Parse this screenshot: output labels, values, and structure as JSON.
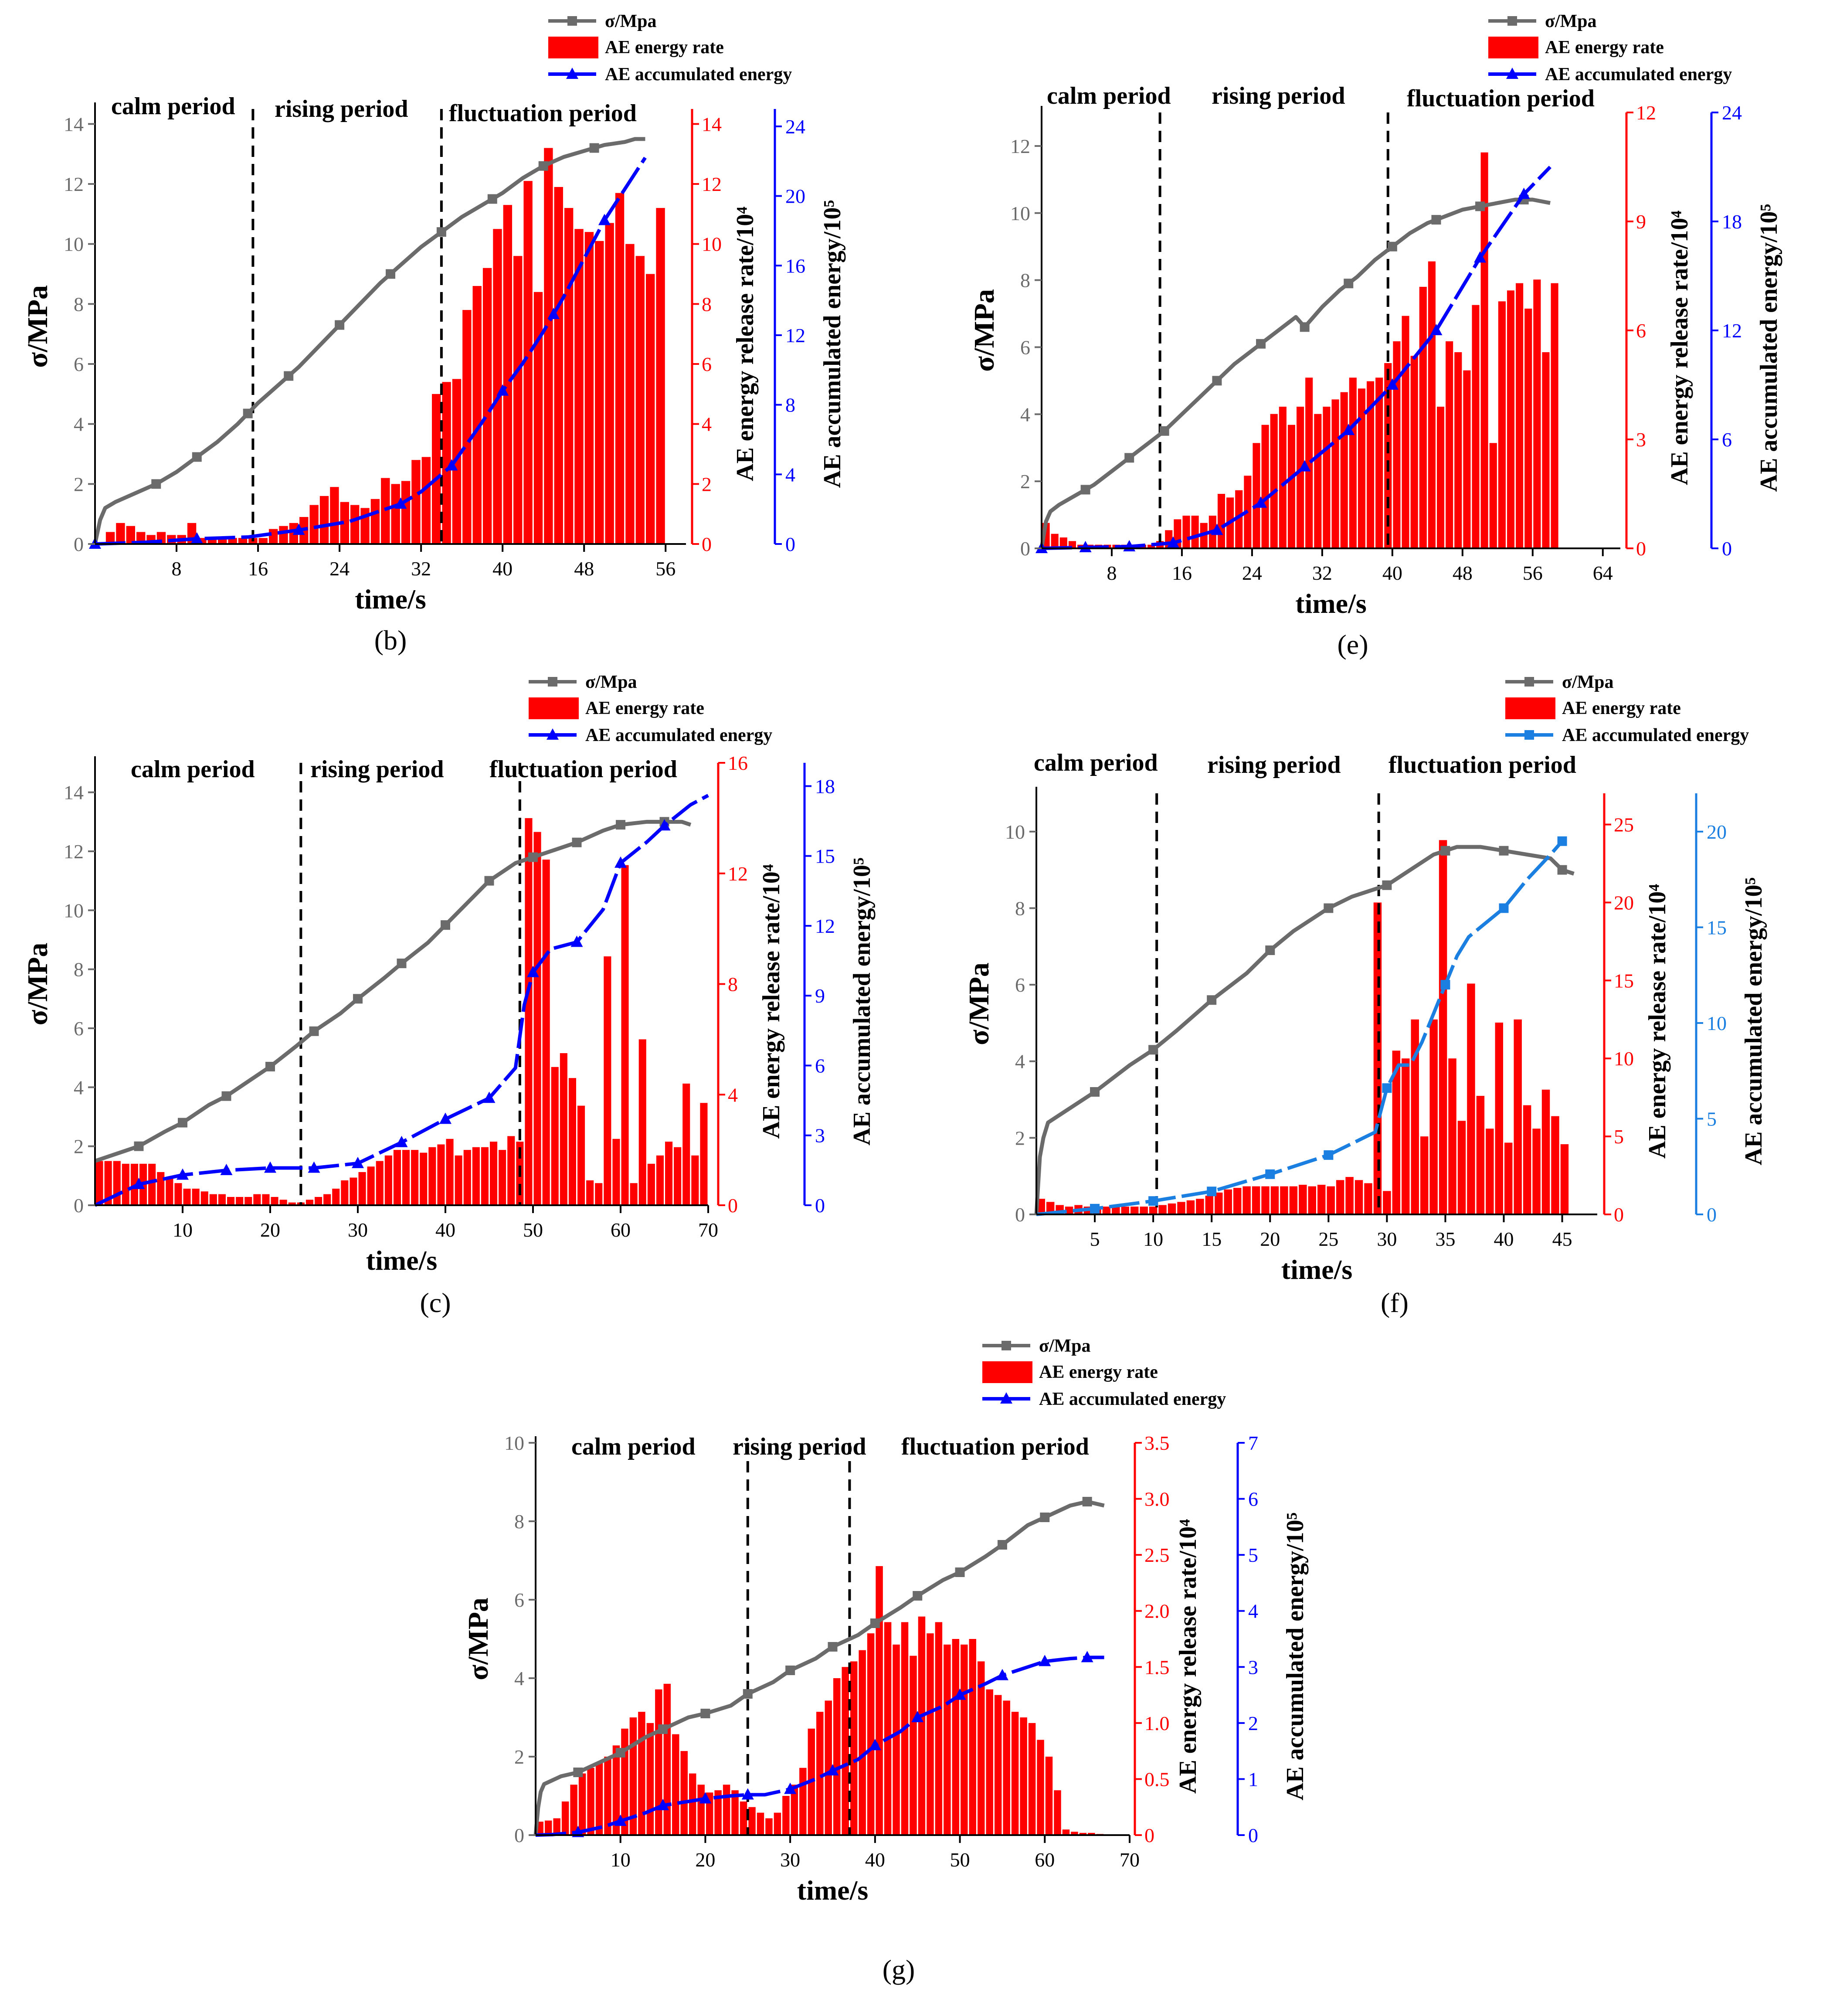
{
  "colors": {
    "stress": "#6b6b6b",
    "energy_rate": "#ff0000",
    "accumulated": "#0000ff",
    "accumulated_alt": "#1a7fe0",
    "divider": "#000000"
  },
  "chart_data": [
    {
      "panel": "b",
      "caption": "(b)",
      "type": "bar",
      "legend": {
        "stress": "σ/Mpa",
        "rate": "AE energy rate",
        "accum": "AE accumulated energy"
      },
      "accum_marker": "triangle",
      "accum_color": "#0000ff",
      "periods": [
        "calm period",
        "rising period",
        "fluctuation period"
      ],
      "dividers": [
        15.5,
        34
      ],
      "xlabel": "time/s",
      "ylabel_left": "σ/MPa",
      "ylabel_rate": "AE energy release rate/10⁴",
      "ylabel_accum": "AE accumulated energy/10⁵",
      "xlim": [
        0,
        58
      ],
      "xticks": [
        8,
        16,
        24,
        32,
        40,
        48,
        56
      ],
      "ylim_left": [
        0,
        14.5
      ],
      "yticks_left": [
        0,
        2,
        4,
        6,
        8,
        10,
        12,
        14
      ],
      "ylim_rate": [
        0,
        14.5
      ],
      "yticks_rate": [
        0,
        2,
        4,
        6,
        8,
        10,
        12,
        14
      ],
      "ylim_accum": [
        0,
        25
      ],
      "yticks_accum": [
        0,
        4,
        8,
        12,
        16,
        20,
        24
      ],
      "bar_x_start": 1,
      "bar_width": 1,
      "rate_values": [
        0.4,
        0.7,
        0.6,
        0.4,
        0.3,
        0.4,
        0.3,
        0.3,
        0.7,
        0.2,
        0.2,
        0.2,
        0.2,
        0.2,
        0.2,
        0.2,
        0.5,
        0.6,
        0.7,
        0.9,
        1.3,
        1.6,
        1.9,
        1.4,
        1.3,
        1.2,
        1.5,
        2.2,
        2.0,
        2.1,
        2.8,
        2.9,
        5.0,
        5.4,
        5.5,
        7.8,
        8.6,
        9.2,
        10.5,
        11.3,
        9.6,
        12.1,
        8.4,
        13.2,
        11.9,
        11.2,
        10.5,
        10.4,
        10.1,
        10.7,
        11.7,
        10.0,
        9.6,
        9.0,
        11.2
      ],
      "stress_x": [
        0,
        0.5,
        1,
        2,
        4,
        6,
        8,
        10,
        12,
        14,
        16,
        18,
        20,
        22,
        24,
        26,
        28,
        30,
        32,
        34,
        36,
        38,
        40,
        42,
        44,
        46,
        48,
        50,
        52,
        53,
        54
      ],
      "stress_y": [
        0,
        0.8,
        1.2,
        1.4,
        1.7,
        2.0,
        2.4,
        2.9,
        3.4,
        4.0,
        4.7,
        5.3,
        5.9,
        6.6,
        7.3,
        8.0,
        8.7,
        9.3,
        9.9,
        10.4,
        10.9,
        11.3,
        11.7,
        12.2,
        12.6,
        12.9,
        13.1,
        13.3,
        13.4,
        13.5,
        13.5
      ],
      "stress_markers": [
        6,
        10,
        15,
        19,
        24,
        29,
        34,
        39,
        44,
        49
      ],
      "accum_x": [
        0,
        5,
        10,
        15,
        20,
        25,
        30,
        32,
        35,
        38,
        40,
        42,
        44,
        46,
        48,
        50,
        52,
        54
      ],
      "accum_y": [
        0,
        0.1,
        0.3,
        0.4,
        0.8,
        1.3,
        2.3,
        3.0,
        4.5,
        7.0,
        8.8,
        10.4,
        12.2,
        14.2,
        16.4,
        18.6,
        20.4,
        22.2
      ],
      "accum_markers": [
        0,
        10,
        20,
        30,
        35,
        40,
        45,
        50
      ]
    },
    {
      "panel": "e",
      "caption": "(e)",
      "type": "bar",
      "legend": {
        "stress": "σ/Mpa",
        "rate": "AE energy rate",
        "accum": "AE accumulated energy"
      },
      "accum_marker": "triangle",
      "accum_color": "#0000ff",
      "periods": [
        "calm period",
        "rising period",
        "fluctuation period"
      ],
      "dividers": [
        13.5,
        39.5
      ],
      "xlabel": "time/s",
      "ylabel_left": "σ/MPa",
      "ylabel_rate": "AE energy release rate/10⁴",
      "ylabel_accum": "AE accumulated energy/10⁵",
      "xlim": [
        0,
        66
      ],
      "xticks": [
        8,
        16,
        24,
        32,
        40,
        48,
        56,
        64
      ],
      "ylim_left": [
        0,
        13
      ],
      "yticks_left": [
        0,
        2,
        4,
        6,
        8,
        10,
        12
      ],
      "ylim_rate": [
        0,
        12
      ],
      "yticks_rate": [
        0,
        3,
        6,
        9,
        12
      ],
      "ylim_accum": [
        0,
        24
      ],
      "yticks_accum": [
        0,
        6,
        12,
        18,
        24
      ],
      "bar_x_start": 0,
      "bar_width": 1,
      "rate_values": [
        0.7,
        0.4,
        0.3,
        0.2,
        0.1,
        0.1,
        0.1,
        0.1,
        0.1,
        0.1,
        0.1,
        0.1,
        0.1,
        0.2,
        0.5,
        0.8,
        0.9,
        0.9,
        0.7,
        0.9,
        1.5,
        1.4,
        1.6,
        2.0,
        2.9,
        3.4,
        3.7,
        3.9,
        3.4,
        3.9,
        4.7,
        3.7,
        3.9,
        4.1,
        4.3,
        4.7,
        4.4,
        4.6,
        4.7,
        5.1,
        5.7,
        6.4,
        5.3,
        7.2,
        7.9,
        3.9,
        5.7,
        5.4,
        4.9,
        6.7,
        10.9,
        2.9,
        6.8,
        7.1,
        7.3,
        6.6,
        7.4,
        5.4,
        7.3
      ],
      "stress_x": [
        0,
        0.5,
        1,
        2,
        4,
        6,
        8,
        10,
        12,
        14,
        16,
        18,
        20,
        22,
        24,
        26,
        28,
        29,
        30,
        31,
        32,
        34,
        36,
        38,
        40,
        42,
        44,
        46,
        48,
        50,
        52,
        54,
        56,
        58
      ],
      "stress_y": [
        0,
        0.8,
        1.1,
        1.3,
        1.6,
        1.9,
        2.3,
        2.7,
        3.1,
        3.5,
        4.0,
        4.5,
        5.0,
        5.5,
        5.9,
        6.3,
        6.7,
        6.9,
        6.6,
        6.9,
        7.2,
        7.7,
        8.1,
        8.6,
        9.0,
        9.4,
        9.7,
        9.9,
        10.1,
        10.2,
        10.3,
        10.4,
        10.4,
        10.3
      ],
      "stress_markers": [
        5,
        10,
        14,
        20,
        25,
        30,
        35,
        40,
        45,
        50,
        55
      ],
      "accum_x": [
        0,
        5,
        10,
        15,
        20,
        25,
        30,
        35,
        40,
        45,
        50,
        55,
        58
      ],
      "accum_y": [
        0,
        0.05,
        0.1,
        0.3,
        1.0,
        2.5,
        4.5,
        6.5,
        9.0,
        12.0,
        16.0,
        19.5,
        21.0
      ],
      "accum_markers": [
        0,
        5,
        10,
        15,
        20,
        25,
        30,
        35,
        40,
        45,
        50,
        55
      ]
    },
    {
      "panel": "c",
      "caption": "(c)",
      "type": "bar",
      "legend": {
        "stress": "σ/Mpa",
        "rate": "AE energy rate",
        "accum": "AE accumulated energy"
      },
      "accum_marker": "triangle",
      "accum_color": "#0000ff",
      "periods": [
        "calm period",
        "rising period",
        "fluctuation period"
      ],
      "dividers": [
        23.5,
        48.5
      ],
      "xlabel": "time/s",
      "ylabel_left": "σ/MPa",
      "ylabel_rate": "AE energy release rate/10⁴",
      "ylabel_accum": "AE accumulated energy/10⁵",
      "xlim": [
        0,
        70
      ],
      "xticks": [
        10,
        20,
        30,
        40,
        50,
        60,
        70
      ],
      "ylim_left": [
        0,
        15
      ],
      "yticks_left": [
        0,
        2,
        4,
        6,
        8,
        10,
        12,
        14
      ],
      "ylim_rate": [
        0,
        16
      ],
      "yticks_rate": [
        0,
        4,
        8,
        12,
        16
      ],
      "ylim_accum": [
        0,
        19
      ],
      "yticks_accum": [
        0,
        3,
        6,
        9,
        12,
        15,
        18
      ],
      "bar_x_start": 0,
      "bar_width": 1,
      "rate_values": [
        1.6,
        1.6,
        1.6,
        1.5,
        1.5,
        1.5,
        1.5,
        1.2,
        1.0,
        0.8,
        0.6,
        0.6,
        0.5,
        0.4,
        0.4,
        0.3,
        0.3,
        0.3,
        0.4,
        0.4,
        0.3,
        0.2,
        0.1,
        0.1,
        0.2,
        0.3,
        0.4,
        0.6,
        0.9,
        1.0,
        1.2,
        1.4,
        1.6,
        1.8,
        2.0,
        2.0,
        2.0,
        1.9,
        2.1,
        2.2,
        2.4,
        1.8,
        2.0,
        2.1,
        2.1,
        2.3,
        2.0,
        2.5,
        2.3,
        14.0,
        13.5,
        12.5,
        5.0,
        5.5,
        4.6,
        3.6,
        0.9,
        0.8,
        9.0,
        2.4,
        12.3,
        0.8,
        6.0,
        1.5,
        1.8,
        2.3,
        2.1,
        4.4,
        1.8,
        3.7
      ],
      "stress_x": [
        0,
        1,
        3,
        5,
        8,
        10,
        13,
        15,
        18,
        20,
        23,
        25,
        28,
        30,
        33,
        35,
        38,
        40,
        43,
        45,
        47,
        48,
        49,
        50,
        52,
        55,
        58,
        60,
        63,
        65,
        67,
        68
      ],
      "stress_y": [
        1.5,
        1.6,
        1.8,
        2.0,
        2.5,
        2.8,
        3.4,
        3.7,
        4.3,
        4.7,
        5.4,
        5.9,
        6.5,
        7.0,
        7.7,
        8.2,
        8.9,
        9.5,
        10.4,
        11.0,
        11.4,
        11.6,
        11.7,
        11.8,
        12.0,
        12.3,
        12.7,
        12.9,
        13.0,
        13.0,
        13.0,
        12.9
      ],
      "stress_markers": [
        5,
        10,
        15,
        20,
        25,
        30,
        35,
        40,
        45,
        50,
        55,
        60,
        65
      ],
      "accum_x": [
        0,
        5,
        10,
        15,
        20,
        25,
        30,
        35,
        40,
        45,
        48,
        49,
        50,
        52,
        55,
        58,
        60,
        63,
        65,
        68,
        70
      ],
      "accum_y": [
        0,
        0.9,
        1.3,
        1.5,
        1.6,
        1.6,
        1.8,
        2.7,
        3.7,
        4.6,
        5.9,
        8.6,
        10.0,
        11.0,
        11.3,
        12.7,
        14.7,
        15.6,
        16.3,
        17.2,
        17.6
      ],
      "accum_markers": [
        5,
        10,
        15,
        20,
        25,
        30,
        35,
        40,
        45,
        50,
        55,
        60,
        65
      ]
    },
    {
      "panel": "f",
      "caption": "(f)",
      "type": "bar",
      "legend": {
        "stress": "σ/Mpa",
        "rate": "AE energy rate",
        "accum": "AE accumulated energy"
      },
      "accum_marker": "square",
      "accum_color": "#1a7fe0",
      "periods": [
        "calm period",
        "rising period",
        "fluctuation period"
      ],
      "dividers": [
        10.3,
        29.3
      ],
      "xlabel": "time/s",
      "ylabel_left": "σ/MPa",
      "ylabel_rate": "AE energy release rate/10⁴",
      "ylabel_accum": "AE accumulated energy/10⁵",
      "xlim": [
        0,
        48
      ],
      "xticks": [
        5,
        10,
        15,
        20,
        25,
        30,
        35,
        40,
        45
      ],
      "ylim_left": [
        0,
        11
      ],
      "yticks_left": [
        0,
        2,
        4,
        6,
        8,
        10
      ],
      "ylim_rate": [
        0,
        27
      ],
      "yticks_rate": [
        0,
        5,
        10,
        15,
        20,
        25
      ],
      "ylim_accum": [
        0,
        22
      ],
      "yticks_accum": [
        0,
        5,
        10,
        15,
        20
      ],
      "bar_x_start": 0,
      "bar_width": 0.8,
      "rate_values": [
        1.0,
        0.8,
        0.6,
        0.5,
        0.6,
        0.5,
        0.5,
        0.5,
        0.5,
        0.5,
        0.5,
        0.5,
        0.5,
        0.6,
        0.7,
        0.8,
        0.9,
        1.0,
        1.2,
        1.4,
        1.6,
        1.7,
        1.8,
        1.8,
        1.8,
        1.8,
        1.8,
        1.8,
        1.9,
        1.8,
        1.9,
        1.8,
        2.2,
        2.4,
        2.2,
        2.0,
        20.0,
        1.5,
        10.5,
        10.0,
        12.5,
        5.0,
        12.5,
        24.0,
        10.0,
        6.0,
        14.8,
        7.6,
        5.5,
        12.3,
        4.6,
        12.5,
        7.0,
        5.5,
        8.0,
        6.3,
        4.5
      ],
      "stress_x": [
        0,
        0.3,
        0.6,
        1,
        3,
        5,
        8,
        10,
        12,
        15,
        18,
        20,
        22,
        25,
        27,
        29,
        30,
        32,
        34,
        35,
        36,
        37,
        38,
        40,
        42,
        44,
        45,
        46
      ],
      "stress_y": [
        0,
        1.5,
        2.0,
        2.4,
        2.8,
        3.2,
        3.9,
        4.3,
        4.8,
        5.6,
        6.3,
        6.9,
        7.4,
        8.0,
        8.3,
        8.5,
        8.6,
        9.0,
        9.4,
        9.5,
        9.6,
        9.6,
        9.6,
        9.5,
        9.4,
        9.3,
        9.0,
        8.9
      ],
      "stress_markers": [
        5,
        10,
        15,
        20,
        25,
        30,
        35,
        40,
        45
      ],
      "accum_x": [
        0,
        5,
        10,
        15,
        20,
        25,
        28,
        29,
        30,
        31,
        32,
        33,
        34,
        35,
        36,
        37,
        38,
        40,
        42,
        44,
        45
      ],
      "accum_y": [
        0,
        0.3,
        0.7,
        1.2,
        2.1,
        3.1,
        4.0,
        4.3,
        6.6,
        7.8,
        7.8,
        9.0,
        10.5,
        12.0,
        13.5,
        14.5,
        15.0,
        16.0,
        17.5,
        18.8,
        19.5
      ],
      "accum_markers": [
        5,
        10,
        15,
        20,
        25,
        30,
        35,
        40,
        45
      ]
    },
    {
      "panel": "g",
      "caption": "(g)",
      "type": "bar",
      "legend": {
        "stress": "σ/Mpa",
        "rate": "AE energy rate",
        "accum": "AE accumulated energy"
      },
      "accum_marker": "triangle",
      "accum_color": "#0000ff",
      "periods": [
        "calm period",
        "rising period",
        "fluctuation period"
      ],
      "dividers": [
        25,
        37
      ],
      "xlabel": "time/s",
      "ylabel_left": "σ/MPa",
      "ylabel_rate": "AE energy release rate/10⁴",
      "ylabel_accum": "AE accumulated energy/10⁵",
      "xlim": [
        0,
        70
      ],
      "xticks": [
        10,
        20,
        30,
        40,
        50,
        60,
        70
      ],
      "ylim_left": [
        0,
        10
      ],
      "yticks_left": [
        0,
        2,
        4,
        6,
        8,
        10
      ],
      "ylim_rate": [
        0,
        3.5
      ],
      "yticks_rate": [
        0,
        0.5,
        1.0,
        1.5,
        2.0,
        2.5,
        3.0,
        3.5
      ],
      "ylim_accum": [
        0,
        7
      ],
      "yticks_accum": [
        0,
        1,
        2,
        3,
        4,
        5,
        6,
        7
      ],
      "bar_x_start": 0,
      "bar_width": 1,
      "rate_values": [
        0.12,
        0.13,
        0.15,
        0.3,
        0.45,
        0.55,
        0.6,
        0.65,
        0.7,
        0.8,
        0.95,
        1.05,
        1.1,
        1.0,
        1.3,
        1.35,
        0.9,
        0.75,
        0.55,
        0.45,
        0.38,
        0.4,
        0.45,
        0.4,
        0.3,
        0.25,
        0.2,
        0.15,
        0.2,
        0.35,
        0.45,
        0.6,
        0.95,
        1.1,
        1.2,
        1.4,
        1.5,
        1.55,
        1.65,
        1.8,
        2.4,
        1.9,
        1.7,
        1.9,
        1.6,
        1.95,
        1.8,
        1.9,
        1.7,
        1.75,
        1.7,
        1.75,
        1.55,
        1.3,
        1.25,
        1.2,
        1.1,
        1.05,
        1.0,
        0.85,
        0.7,
        0.4,
        0.05,
        0.03,
        0.02,
        0.02,
        0.01
      ],
      "stress_x": [
        0,
        0.3,
        0.6,
        1,
        2,
        3,
        5,
        8,
        10,
        13,
        15,
        18,
        20,
        23,
        25,
        28,
        30,
        33,
        35,
        38,
        40,
        43,
        45,
        48,
        50,
        53,
        55,
        58,
        60,
        63,
        65,
        67
      ],
      "stress_y": [
        0,
        0.7,
        1.1,
        1.3,
        1.4,
        1.5,
        1.6,
        1.9,
        2.1,
        2.5,
        2.7,
        3.0,
        3.1,
        3.3,
        3.6,
        3.9,
        4.2,
        4.5,
        4.8,
        5.1,
        5.4,
        5.8,
        6.1,
        6.5,
        6.7,
        7.1,
        7.4,
        7.9,
        8.1,
        8.4,
        8.5,
        8.4
      ],
      "stress_markers": [
        5,
        10,
        15,
        20,
        25,
        30,
        35,
        40,
        45,
        50,
        55,
        60,
        65
      ],
      "accum_x": [
        0,
        2,
        5,
        8,
        10,
        13,
        15,
        18,
        20,
        23,
        25,
        27,
        30,
        33,
        35,
        38,
        40,
        43,
        45,
        48,
        50,
        53,
        55,
        58,
        60,
        63,
        65,
        67
      ],
      "accum_y": [
        0,
        0.01,
        0.05,
        0.15,
        0.25,
        0.4,
        0.53,
        0.6,
        0.65,
        0.7,
        0.72,
        0.72,
        0.82,
        1.0,
        1.15,
        1.35,
        1.6,
        1.85,
        2.1,
        2.3,
        2.5,
        2.7,
        2.85,
        3.0,
        3.1,
        3.15,
        3.17,
        3.17
      ],
      "accum_markers": [
        5,
        10,
        15,
        20,
        25,
        30,
        35,
        40,
        45,
        50,
        55,
        60,
        65
      ]
    }
  ]
}
